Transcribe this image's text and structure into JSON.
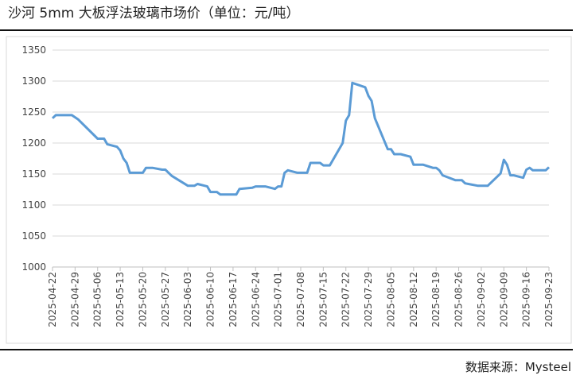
{
  "chart_data": {
    "type": "line",
    "title": "沙河 5mm 大板浮法玻璃市场价（单位：元/吨）",
    "source": "数据来源：Mysteel",
    "x": [
      "2025-04-22",
      "2025-04-23",
      "2025-04-28",
      "2025-04-30",
      "2025-05-06",
      "2025-05-08",
      "2025-05-09",
      "2025-05-12",
      "2025-05-13",
      "2025-05-14",
      "2025-05-15",
      "2025-05-16",
      "2025-05-20",
      "2025-05-21",
      "2025-05-23",
      "2025-05-26",
      "2025-05-27",
      "2025-05-29",
      "2025-06-03",
      "2025-06-05",
      "2025-06-06",
      "2025-06-09",
      "2025-06-10",
      "2025-06-12",
      "2025-06-13",
      "2025-06-18",
      "2025-06-19",
      "2025-06-23",
      "2025-06-24",
      "2025-06-27",
      "2025-06-30",
      "2025-07-01",
      "2025-07-02",
      "2025-07-03",
      "2025-07-04",
      "2025-07-07",
      "2025-07-10",
      "2025-07-11",
      "2025-07-14",
      "2025-07-15",
      "2025-07-17",
      "2025-07-21",
      "2025-07-22",
      "2025-07-23",
      "2025-07-24",
      "2025-07-28",
      "2025-07-29",
      "2025-07-30",
      "2025-07-31",
      "2025-08-04",
      "2025-08-05",
      "2025-08-06",
      "2025-08-08",
      "2025-08-11",
      "2025-08-12",
      "2025-08-15",
      "2025-08-18",
      "2025-08-19",
      "2025-08-20",
      "2025-08-21",
      "2025-08-22",
      "2025-08-25",
      "2025-08-27",
      "2025-08-28",
      "2025-08-29",
      "2025-09-01",
      "2025-09-04",
      "2025-09-08",
      "2025-09-09",
      "2025-09-10",
      "2025-09-11",
      "2025-09-12",
      "2025-09-15",
      "2025-09-16",
      "2025-09-17",
      "2025-09-18",
      "2025-09-22",
      "2025-09-23"
    ],
    "series": [
      {
        "name": "沙河 5mm 大板浮法玻璃市场价",
        "color": "#5b9bd5",
        "values": [
          1240,
          1245,
          1245,
          1238,
          1207,
          1207,
          1198,
          1194,
          1188,
          1175,
          1168,
          1152,
          1152,
          1160,
          1160,
          1157,
          1157,
          1147,
          1131,
          1131,
          1134,
          1130,
          1121,
          1121,
          1117,
          1117,
          1126,
          1128,
          1130,
          1130,
          1126,
          1130,
          1130,
          1152,
          1156,
          1152,
          1152,
          1168,
          1168,
          1164,
          1164,
          1200,
          1236,
          1245,
          1297,
          1290,
          1276,
          1268,
          1240,
          1190,
          1190,
          1182,
          1182,
          1178,
          1165,
          1165,
          1160,
          1160,
          1156,
          1148,
          1146,
          1140,
          1140,
          1135,
          1134,
          1131,
          1131,
          1151,
          1173,
          1165,
          1148,
          1148,
          1144,
          1157,
          1160,
          1156,
          1156,
          1161
        ]
      }
    ],
    "xlim": [
      "2025-04-22",
      "2025-09-23"
    ],
    "xticks": [
      "2025-04-22",
      "2025-04-29",
      "2025-05-06",
      "2025-05-13",
      "2025-05-20",
      "2025-05-27",
      "2025-06-03",
      "2025-06-10",
      "2025-06-17",
      "2025-06-24",
      "2025-07-01",
      "2025-07-08",
      "2025-07-15",
      "2025-07-22",
      "2025-07-29",
      "2025-08-05",
      "2025-08-12",
      "2025-08-19",
      "2025-08-26",
      "2025-09-02",
      "2025-09-09",
      "2025-09-16",
      "2025-09-23"
    ],
    "ylim": [
      1000,
      1350
    ],
    "yticks": [
      1000,
      1050,
      1100,
      1150,
      1200,
      1250,
      1300,
      1350
    ],
    "grid": true
  }
}
